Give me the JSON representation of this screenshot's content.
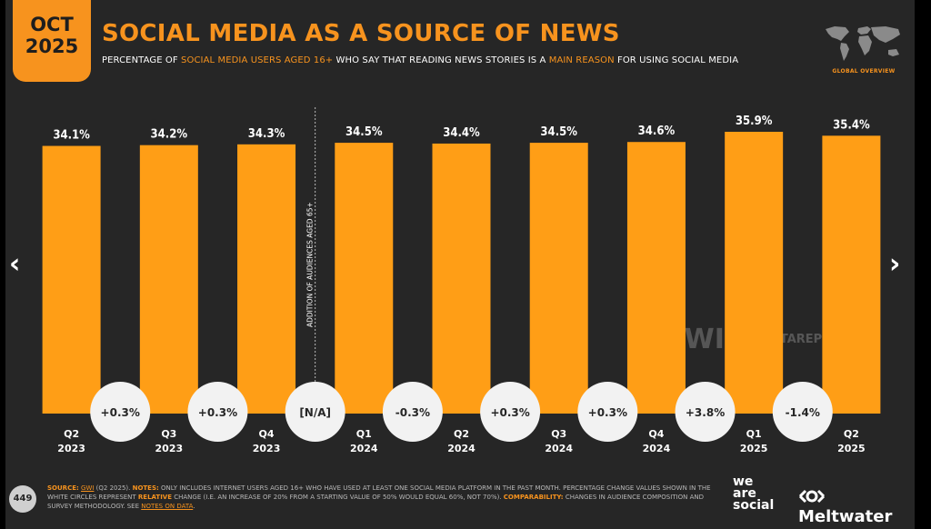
{
  "header": {
    "month": "OCT",
    "year": "2025",
    "title": "SOCIAL MEDIA AS A SOURCE OF NEWS",
    "subtitle_1": "PERCENTAGE OF ",
    "subtitle_hl1": "SOCIAL MEDIA USERS AGED 16+",
    "subtitle_2": " WHO SAY THAT READING NEWS STORIES IS A ",
    "subtitle_hl2": "MAIN REASON",
    "subtitle_3": " FOR USING SOCIAL MEDIA",
    "global_label": "GLOBAL OVERVIEW",
    "map_icon": "world-map-icon"
  },
  "colors": {
    "accent": "#F7931E",
    "background": "#262626",
    "bar": "#FF9E16",
    "circle": "#F2F2F2"
  },
  "chart_data": {
    "type": "bar",
    "categories": [
      [
        "Q2",
        "2023"
      ],
      [
        "Q3",
        "2023"
      ],
      [
        "Q4",
        "2023"
      ],
      [
        "Q1",
        "2024"
      ],
      [
        "Q2",
        "2024"
      ],
      [
        "Q3",
        "2024"
      ],
      [
        "Q4",
        "2024"
      ],
      [
        "Q1",
        "2025"
      ],
      [
        "Q2",
        "2025"
      ]
    ],
    "values": [
      34.1,
      34.2,
      34.3,
      34.5,
      34.4,
      34.5,
      34.6,
      35.9,
      35.4
    ],
    "value_labels": [
      "34.1%",
      "34.2%",
      "34.3%",
      "34.5%",
      "34.4%",
      "34.5%",
      "34.6%",
      "35.9%",
      "35.4%"
    ],
    "changes": [
      "+0.3%",
      "+0.3%",
      "[N/A]",
      "-0.3%",
      "+0.3%",
      "+0.3%",
      "+3.8%",
      "-1.4%"
    ],
    "annotation": "ADDITION OF AUDIENCES AGED 65+",
    "annotation_after_index": 2,
    "title": "SOCIAL MEDIA AS A SOURCE OF NEWS",
    "xlabel": "",
    "ylabel": "",
    "grid": false,
    "legend": "none"
  },
  "watermarks": {
    "gwi": "GWI.",
    "datareportal": "DATAREPORTAL"
  },
  "nav": {
    "prev": "‹",
    "next": "›"
  },
  "footer": {
    "page_number": "449",
    "source_label": "SOURCE:",
    "source_gwi": "GWI",
    "source_text": " (Q2 2025). ",
    "notes_label": "NOTES:",
    "notes_text": " ONLY INCLUDES INTERNET USERS AGED 16+ WHO HAVE USED AT LEAST ONE SOCIAL MEDIA PLATFORM IN THE PAST MONTH. PERCENTAGE CHANGE VALUES SHOWN IN THE WHITE CIRCLES REPRESENT ",
    "relative": "RELATIVE",
    "notes_text2": " CHANGE (I.E. AN INCREASE OF 20% FROM A STARTING VALUE OF 50% WOULD EQUAL 60%, NOT 70%). ",
    "comparability_label": "COMPARABILITY:",
    "comparability_text": " CHANGES IN AUDIENCE COMPOSITION AND SURVEY METHODOLOGY. SEE ",
    "notes_on_data": "NOTES ON DATA",
    "end": ".",
    "we": "we",
    "are": "are",
    "social": "social",
    "meltwater": "Meltwater",
    "meltwater_icon": "meltwater-logo-icon"
  }
}
